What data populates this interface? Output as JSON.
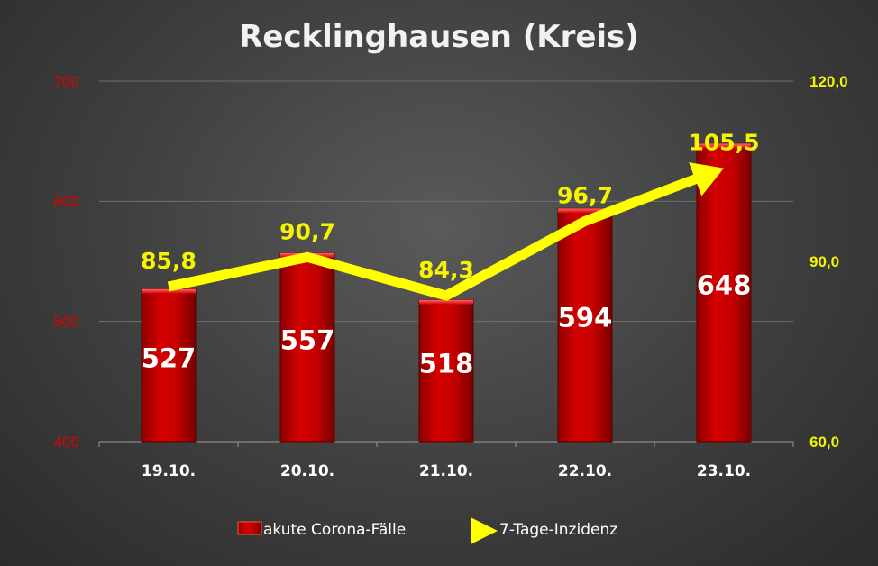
{
  "chart_data": {
    "type": "bar",
    "title": "Recklinghausen (Kreis)",
    "categories": [
      "19.10.",
      "20.10.",
      "21.10.",
      "22.10.",
      "23.10."
    ],
    "series": [
      {
        "name": "akute Corona-Fälle",
        "type": "bar",
        "axis": "left",
        "values": [
          527,
          557,
          518,
          594,
          648
        ],
        "labels": [
          "527",
          "557",
          "518",
          "594",
          "648"
        ]
      },
      {
        "name": "7-Tage-Inzidenz",
        "type": "line",
        "axis": "right",
        "values": [
          85.8,
          90.7,
          84.3,
          96.7,
          105.5
        ],
        "labels": [
          "85,8",
          "90,7",
          "84,3",
          "96,7",
          "105,5"
        ]
      }
    ],
    "y_left": {
      "ylim": [
        400,
        700
      ],
      "ticks": [
        "400",
        "500",
        "600",
        "700"
      ]
    },
    "y_right": {
      "ylim": [
        60,
        120
      ],
      "ticks": [
        "60,0",
        "90,0",
        "120,0"
      ]
    },
    "grid": true,
    "legend_position": "bottom",
    "colors": {
      "bar": "#c00000",
      "line": "#ffff00",
      "left_axis": "#e00000",
      "right_axis": "#f5f500"
    }
  }
}
